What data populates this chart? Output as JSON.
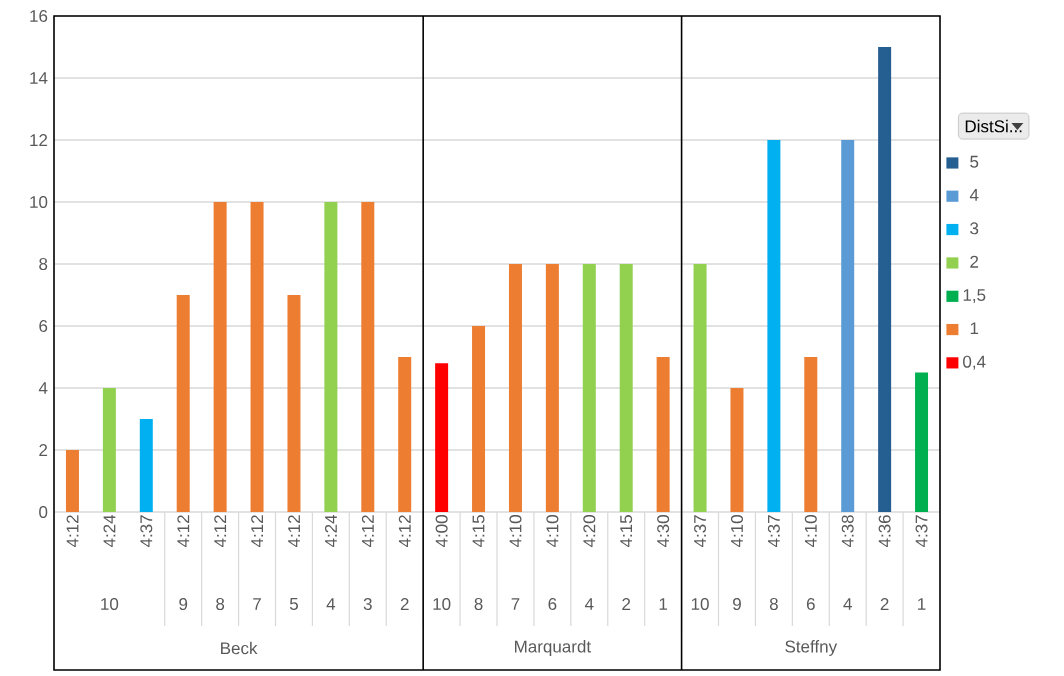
{
  "chart_data": {
    "type": "bar",
    "categories": [
      "4:12",
      "4:24",
      "4:37",
      "4:12",
      "4:12",
      "4:12",
      "4:12",
      "4:24",
      "4:12",
      "4:12",
      "4:00",
      "4:15",
      "4:10",
      "4:10",
      "4:20",
      "4:15",
      "4:30",
      "4:37",
      "4:10",
      "4:37",
      "4:10",
      "4:38",
      "4:36",
      "4:37"
    ],
    "series": [
      {
        "name": "0,4",
        "color": "#ff0000",
        "values": [
          null,
          null,
          null,
          null,
          null,
          null,
          null,
          null,
          null,
          null,
          4.8,
          null,
          null,
          null,
          null,
          null,
          null,
          null,
          null,
          null,
          null,
          null,
          null,
          null
        ]
      },
      {
        "name": "1",
        "color": "#ed7d31",
        "values": [
          2,
          null,
          null,
          7,
          10,
          10,
          7,
          null,
          10,
          5,
          null,
          6,
          8,
          8,
          null,
          null,
          5,
          null,
          4,
          null,
          5,
          null,
          null,
          null
        ]
      },
      {
        "name": "1,5",
        "color": "#00b050",
        "values": [
          null,
          null,
          null,
          null,
          null,
          null,
          null,
          null,
          null,
          null,
          null,
          null,
          null,
          null,
          null,
          null,
          null,
          null,
          null,
          null,
          null,
          null,
          null,
          4.5
        ]
      },
      {
        "name": "2",
        "color": "#92d050",
        "values": [
          null,
          4,
          null,
          null,
          null,
          null,
          null,
          10,
          null,
          null,
          null,
          null,
          null,
          null,
          8,
          8,
          null,
          8,
          null,
          null,
          null,
          null,
          null,
          null
        ]
      },
      {
        "name": "3",
        "color": "#00b0f0",
        "values": [
          null,
          null,
          3,
          null,
          null,
          null,
          null,
          null,
          null,
          null,
          null,
          null,
          null,
          null,
          null,
          null,
          null,
          null,
          null,
          12,
          null,
          null,
          null,
          null
        ]
      },
      {
        "name": "4",
        "color": "#5b9bd5",
        "values": [
          null,
          null,
          null,
          null,
          null,
          null,
          null,
          null,
          null,
          null,
          null,
          null,
          null,
          null,
          null,
          null,
          null,
          null,
          null,
          null,
          null,
          12,
          null,
          null
        ]
      },
      {
        "name": "5",
        "color": "#255e91",
        "values": [
          null,
          null,
          null,
          null,
          null,
          null,
          null,
          null,
          null,
          null,
          null,
          null,
          null,
          null,
          null,
          null,
          null,
          null,
          null,
          null,
          null,
          null,
          15,
          null
        ]
      }
    ],
    "legend_title": "DistSi...",
    "legend": "right",
    "ylim": [
      0,
      16
    ],
    "yticks": [
      0,
      2,
      4,
      6,
      8,
      10,
      12,
      14,
      16
    ],
    "grid": "y",
    "annotations": [
      "10",
      "9",
      "8",
      "7",
      "5",
      "4",
      "3",
      "2",
      "10",
      "8",
      "7",
      "6",
      "4",
      "2",
      "1",
      "10",
      "9",
      "8",
      "6",
      "4",
      "2",
      "1",
      "Beck",
      "Marquardt",
      "Steffny"
    ]
  }
}
